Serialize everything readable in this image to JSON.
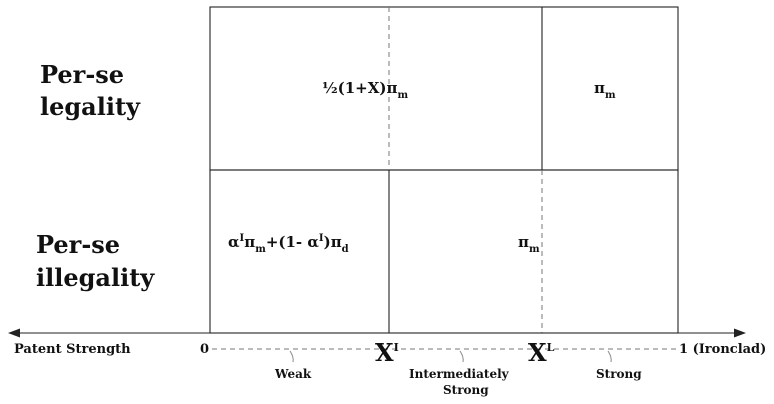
{
  "rows": {
    "top_line1": "Per-se",
    "top_line2": "legality",
    "bottom_line1": "Per-se",
    "bottom_line2": "illegality"
  },
  "cells": {
    "top_left": "½(1+X)π",
    "top_left_sub": "m",
    "top_right": "π",
    "top_right_sub": "m",
    "bottom_left_a": "α",
    "bottom_left_a_sup": "I",
    "bottom_left_pi1": "π",
    "bottom_left_pi1_sub": "m",
    "bottom_left_mid": "+(1- α",
    "bottom_left_mid_sup": "I",
    "bottom_left_close": ")π",
    "bottom_left_close_sub": "d",
    "bottom_right": "π",
    "bottom_right_sub": "m"
  },
  "axis": {
    "label": "Patent Strength",
    "zero": "0",
    "one": "1 (Ironclad)",
    "x_i": "X",
    "x_i_sup": "I",
    "x_l": "X",
    "x_l_sup": "L"
  },
  "regions": {
    "weak": "Weak",
    "intermediate_line1": "Intermediately",
    "intermediate_line2": "Strong",
    "strong": "Strong"
  }
}
